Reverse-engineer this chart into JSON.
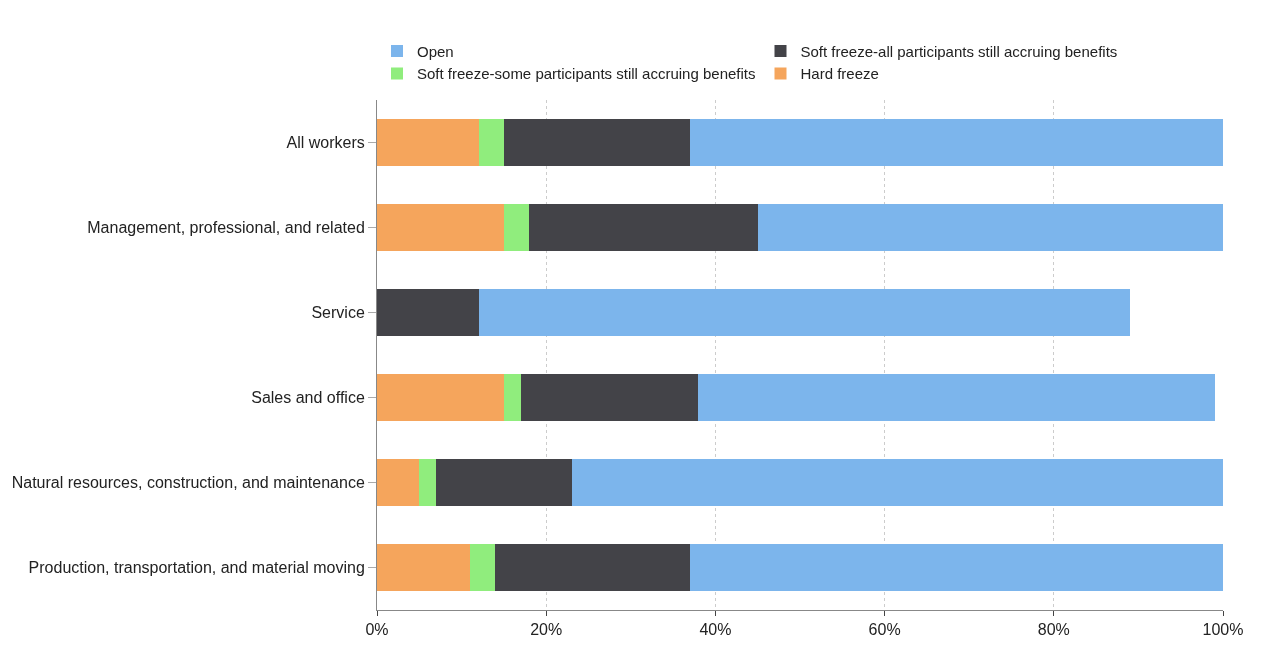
{
  "chart_data": {
    "type": "bar",
    "orientation": "horizontal",
    "stacked": true,
    "categories": [
      "All workers",
      "Management, professional, and related",
      "Service",
      "Sales and office",
      "Natural resources, construction, and maintenance",
      "Production, transportation, and material moving"
    ],
    "series": [
      {
        "name": "Hard freeze",
        "color": "#f5a55c",
        "values": [
          12,
          15,
          0,
          15,
          5,
          11
        ]
      },
      {
        "name": "Soft freeze-some participants still accruing benefits",
        "color": "#90ed7d",
        "values": [
          3,
          3,
          0,
          2,
          2,
          3
        ]
      },
      {
        "name": "Soft freeze-all participants still accruing benefits",
        "color": "#434348",
        "values": [
          22,
          27,
          12,
          21,
          16,
          23
        ]
      },
      {
        "name": "Open",
        "color": "#7cb5ec",
        "values": [
          63,
          55,
          77,
          61,
          77,
          63
        ]
      }
    ],
    "xlim": [
      0,
      100
    ],
    "xticks": [
      {
        "value": 0,
        "label": "0%"
      },
      {
        "value": 20,
        "label": "20%"
      },
      {
        "value": 40,
        "label": "40%"
      },
      {
        "value": 60,
        "label": "60%"
      },
      {
        "value": 80,
        "label": "80%"
      },
      {
        "value": 100,
        "label": "100%"
      }
    ],
    "grid": "x",
    "legend": "top left"
  }
}
